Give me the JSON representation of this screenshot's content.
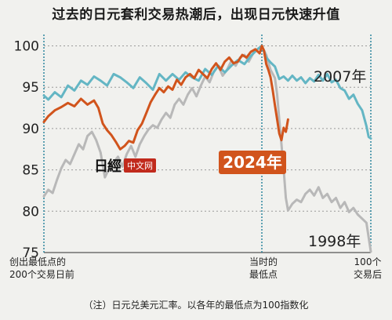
{
  "title": "过去的日元套利交易热潮后，出现日元快速升值",
  "note": "（注）日元兑美元汇率。以各年的最低点为100指数化",
  "watermark": {
    "mark": "日經",
    "label": "中文网"
  },
  "colors": {
    "s2007": "#64b6c4",
    "s2024": "#d1541c",
    "s1998": "#b8b8b8",
    "vline": "#1f7f99",
    "badge": "#d1541c"
  },
  "chart_data": {
    "type": "line",
    "title": "过去的日元套利交易热潮后，出现日元快速升值",
    "xlabel": "",
    "ylabel": "",
    "xlim": [
      -200,
      100
    ],
    "ylim": [
      75,
      101
    ],
    "yticks": [
      75,
      80,
      85,
      90,
      95,
      100
    ],
    "grid": true,
    "x_markers": [
      {
        "x": -200,
        "label": "创出最低点的\n200个交易日前"
      },
      {
        "x": 0,
        "label": "当时的\n最低点"
      },
      {
        "x": 100,
        "label": "100个\n交易后"
      }
    ],
    "series": [
      {
        "name": "2007年",
        "points": [
          [
            -200,
            94
          ],
          [
            -196,
            93.5
          ],
          [
            -190,
            94.4
          ],
          [
            -184,
            93.8
          ],
          [
            -178,
            95.2
          ],
          [
            -172,
            94.6
          ],
          [
            -166,
            95.8
          ],
          [
            -160,
            95.3
          ],
          [
            -154,
            96.3
          ],
          [
            -148,
            95.8
          ],
          [
            -142,
            95.2
          ],
          [
            -136,
            96.6
          ],
          [
            -130,
            96.2
          ],
          [
            -124,
            95.6
          ],
          [
            -118,
            94.9
          ],
          [
            -112,
            96.2
          ],
          [
            -106,
            95.5
          ],
          [
            -100,
            94.7
          ],
          [
            -94,
            96.6
          ],
          [
            -88,
            95.8
          ],
          [
            -82,
            96.6
          ],
          [
            -76,
            95.9
          ],
          [
            -70,
            96.8
          ],
          [
            -64,
            96.2
          ],
          [
            -58,
            95.8
          ],
          [
            -52,
            97.2
          ],
          [
            -46,
            96.5
          ],
          [
            -40,
            97.6
          ],
          [
            -34,
            96.8
          ],
          [
            -28,
            97.6
          ],
          [
            -22,
            98.3
          ],
          [
            -16,
            97.8
          ],
          [
            -10,
            98.8
          ],
          [
            -4,
            99.6
          ],
          [
            0,
            100
          ],
          [
            4,
            98.6
          ],
          [
            8,
            98
          ],
          [
            12,
            97.5
          ],
          [
            16,
            96
          ],
          [
            20,
            96.3
          ],
          [
            24,
            95.8
          ],
          [
            28,
            96.4
          ],
          [
            32,
            95.8
          ],
          [
            36,
            96.2
          ],
          [
            40,
            95.5
          ],
          [
            44,
            96.1
          ],
          [
            48,
            95.7
          ],
          [
            52,
            96.5
          ],
          [
            56,
            95.8
          ],
          [
            60,
            96.6
          ],
          [
            64,
            95.6
          ],
          [
            68,
            95.9
          ],
          [
            72,
            94.9
          ],
          [
            76,
            94.6
          ],
          [
            80,
            93.6
          ],
          [
            84,
            94.1
          ],
          [
            88,
            93
          ],
          [
            92,
            92.2
          ],
          [
            96,
            90.3
          ],
          [
            98,
            89
          ],
          [
            100,
            88.8
          ]
        ]
      },
      {
        "name": "2024年",
        "points": [
          [
            -200,
            90.8
          ],
          [
            -196,
            91.5
          ],
          [
            -190,
            92.2
          ],
          [
            -184,
            92.6
          ],
          [
            -178,
            93.1
          ],
          [
            -172,
            92.7
          ],
          [
            -166,
            93.6
          ],
          [
            -160,
            92.9
          ],
          [
            -154,
            93.4
          ],
          [
            -150,
            92.5
          ],
          [
            -146,
            90.6
          ],
          [
            -142,
            89.8
          ],
          [
            -138,
            89.2
          ],
          [
            -134,
            88.4
          ],
          [
            -130,
            87.5
          ],
          [
            -126,
            87.9
          ],
          [
            -122,
            88.5
          ],
          [
            -118,
            88.3
          ],
          [
            -114,
            89.8
          ],
          [
            -110,
            90.6
          ],
          [
            -106,
            91.9
          ],
          [
            -102,
            93.2
          ],
          [
            -98,
            94.1
          ],
          [
            -94,
            94.9
          ],
          [
            -90,
            94.4
          ],
          [
            -86,
            95.1
          ],
          [
            -82,
            94.7
          ],
          [
            -78,
            95.9
          ],
          [
            -74,
            95.3
          ],
          [
            -70,
            96.2
          ],
          [
            -66,
            96.6
          ],
          [
            -62,
            96.1
          ],
          [
            -58,
            97.1
          ],
          [
            -54,
            96.6
          ],
          [
            -50,
            96.1
          ],
          [
            -46,
            97.2
          ],
          [
            -42,
            97.9
          ],
          [
            -38,
            97.1
          ],
          [
            -34,
            98.1
          ],
          [
            -30,
            98.6
          ],
          [
            -26,
            97.9
          ],
          [
            -22,
            98.1
          ],
          [
            -18,
            98.9
          ],
          [
            -14,
            98.6
          ],
          [
            -10,
            99.3
          ],
          [
            -6,
            99.6
          ],
          [
            -2,
            99.1
          ],
          [
            0,
            100
          ],
          [
            2,
            99.4
          ],
          [
            4,
            97.8
          ],
          [
            6,
            97.1
          ],
          [
            8,
            96.2
          ],
          [
            10,
            94.6
          ],
          [
            12,
            92.8
          ],
          [
            14,
            91.1
          ],
          [
            16,
            89.4
          ],
          [
            18,
            88.6
          ],
          [
            20,
            90.1
          ],
          [
            22,
            89.6
          ],
          [
            24,
            91.1
          ]
        ]
      },
      {
        "name": "1998年",
        "points": [
          [
            -200,
            81.8
          ],
          [
            -196,
            82.6
          ],
          [
            -192,
            82.2
          ],
          [
            -188,
            83.8
          ],
          [
            -184,
            85.2
          ],
          [
            -180,
            86.2
          ],
          [
            -176,
            85.7
          ],
          [
            -172,
            86.9
          ],
          [
            -168,
            88.1
          ],
          [
            -164,
            87.5
          ],
          [
            -160,
            89.1
          ],
          [
            -156,
            89.6
          ],
          [
            -152,
            88.6
          ],
          [
            -148,
            87.1
          ],
          [
            -144,
            84.1
          ],
          [
            -140,
            85.2
          ],
          [
            -136,
            85.9
          ],
          [
            -132,
            86.6
          ],
          [
            -128,
            85.4
          ],
          [
            -124,
            86.9
          ],
          [
            -120,
            87.9
          ],
          [
            -116,
            86.6
          ],
          [
            -112,
            88.1
          ],
          [
            -108,
            89.1
          ],
          [
            -104,
            89.9
          ],
          [
            -100,
            90.4
          ],
          [
            -96,
            90.1
          ],
          [
            -92,
            91.1
          ],
          [
            -88,
            91.9
          ],
          [
            -84,
            91.3
          ],
          [
            -80,
            92.9
          ],
          [
            -76,
            93.6
          ],
          [
            -72,
            92.9
          ],
          [
            -68,
            94.1
          ],
          [
            -64,
            94.9
          ],
          [
            -60,
            93.9
          ],
          [
            -56,
            95.2
          ],
          [
            -52,
            96.3
          ],
          [
            -48,
            95.6
          ],
          [
            -44,
            96.9
          ],
          [
            -40,
            97.6
          ],
          [
            -36,
            96.4
          ],
          [
            -32,
            97.1
          ],
          [
            -28,
            98.2
          ],
          [
            -24,
            97.6
          ],
          [
            -20,
            98.6
          ],
          [
            -16,
            98.9
          ],
          [
            -12,
            98.1
          ],
          [
            -8,
            99.1
          ],
          [
            -4,
            99.6
          ],
          [
            0,
            100
          ],
          [
            4,
            98.9
          ],
          [
            8,
            97.1
          ],
          [
            12,
            96.1
          ],
          [
            14,
            94.1
          ],
          [
            16,
            91.1
          ],
          [
            18,
            88.1
          ],
          [
            20,
            85.1
          ],
          [
            22,
            81.6
          ],
          [
            24,
            80.1
          ],
          [
            28,
            80.9
          ],
          [
            32,
            81.4
          ],
          [
            36,
            81.1
          ],
          [
            40,
            82.1
          ],
          [
            44,
            82.6
          ],
          [
            48,
            81.9
          ],
          [
            52,
            82.9
          ],
          [
            56,
            81.6
          ],
          [
            60,
            82.1
          ],
          [
            64,
            81.1
          ],
          [
            68,
            81.6
          ],
          [
            72,
            80.4
          ],
          [
            76,
            81.1
          ],
          [
            80,
            79.9
          ],
          [
            84,
            80.4
          ],
          [
            88,
            79.6
          ],
          [
            92,
            79.1
          ],
          [
            96,
            78.6
          ],
          [
            100,
            75.1
          ]
        ]
      }
    ]
  },
  "labels": {
    "s2007": "2007年",
    "s2024": "2024年",
    "s1998": "1998年"
  }
}
